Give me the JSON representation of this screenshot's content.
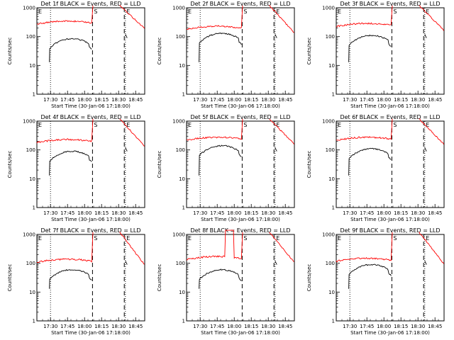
{
  "chart_data": {
    "type": "line",
    "layout": "3x3 grid of panels",
    "y_scale": "log",
    "ylim": [
      1,
      1000
    ],
    "y_ticks": [
      "1000",
      "100",
      "10",
      "1"
    ],
    "ylabel": "Counts/sec",
    "xlabel": "Start Time (30-Jan-06 17:18:00)",
    "x_ticks": [
      "17:30",
      "17:45",
      "18:00",
      "18:15",
      "18:30",
      "18:45"
    ],
    "colors": {
      "events": "#000000",
      "lld": "#ff0000",
      "axes": "#000000"
    },
    "markers": {
      "s_label": "S",
      "e_label": "E",
      "dotted_lines": [
        "17:30",
        "18:36"
      ],
      "dashed_lines": [
        "18:07",
        "18:35"
      ]
    },
    "panels": [
      {
        "title": "Det 1f BLACK = Events, RED = LLD",
        "events_peak": 85,
        "lld_level": 300,
        "lld_bump": false
      },
      {
        "title": "Det 2f BLACK = Events, RED = LLD",
        "events_peak": 130,
        "lld_level": 200,
        "lld_bump": false
      },
      {
        "title": "Det 3f BLACK = Events, RED = LLD",
        "events_peak": 110,
        "lld_level": 250,
        "lld_bump": false
      },
      {
        "title": "Det 4f BLACK = Events, RED = LLD",
        "events_peak": 90,
        "lld_level": 200,
        "lld_bump": false
      },
      {
        "title": "Det 5f BLACK = Events, RED = LLD",
        "events_peak": 140,
        "lld_level": 240,
        "lld_bump": false
      },
      {
        "title": "Det 6f BLACK = Events, RED = LLD",
        "events_peak": 110,
        "lld_level": 240,
        "lld_bump": false
      },
      {
        "title": "Det 7f BLACK = Events, RED = LLD",
        "events_peak": 60,
        "lld_level": 120,
        "lld_bump": false
      },
      {
        "title": "Det 8f BLACK = Events, RED = LLD",
        "events_peak": 60,
        "lld_level": 150,
        "lld_bump": true
      },
      {
        "title": "Det 9f BLACK = Events, RED = LLD",
        "events_peak": 90,
        "lld_level": 130,
        "lld_bump": false
      }
    ]
  }
}
